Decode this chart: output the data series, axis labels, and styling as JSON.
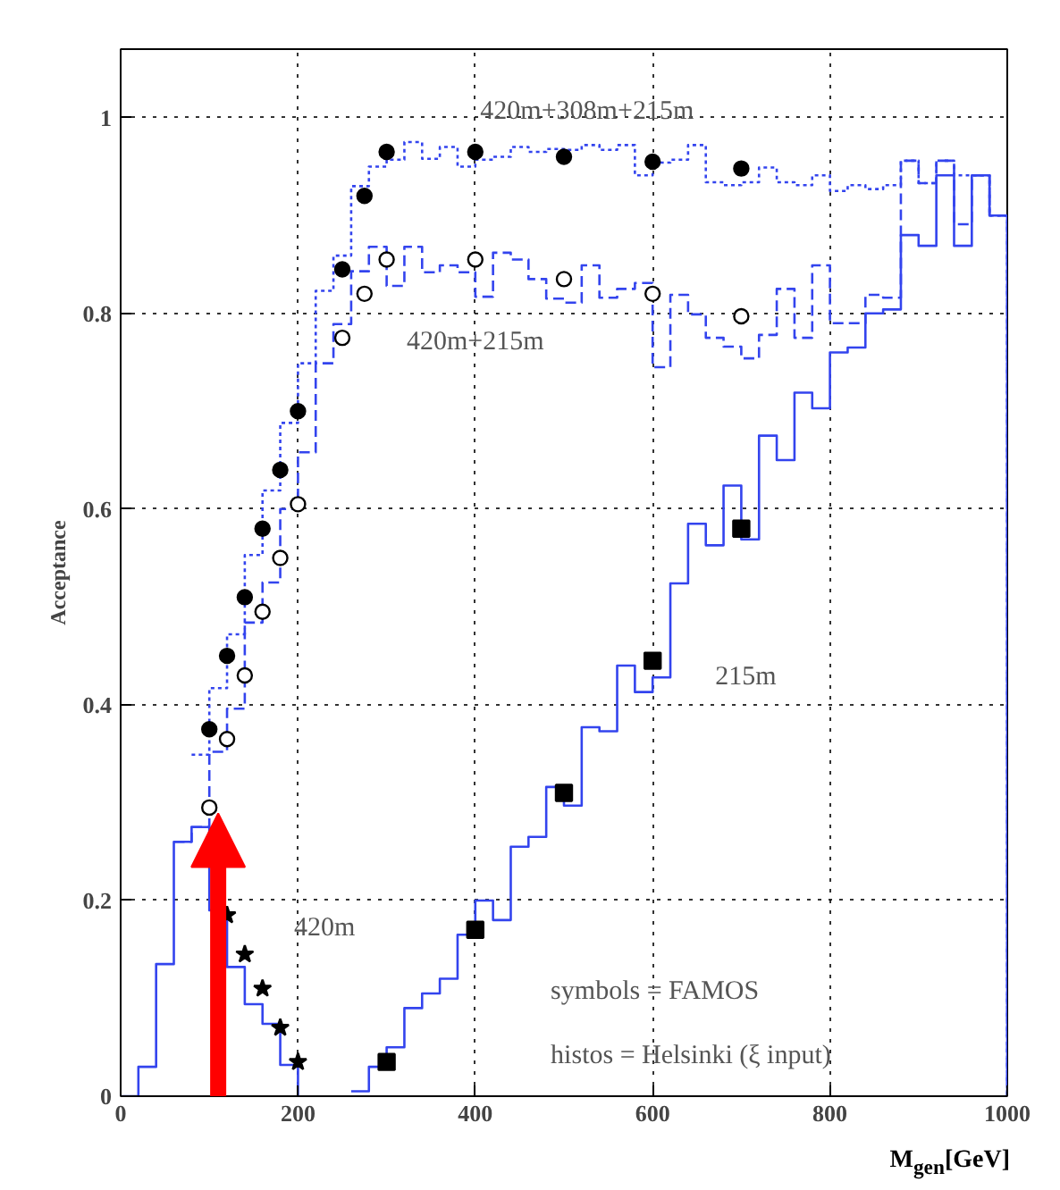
{
  "chart_data": {
    "type": "step",
    "xlabel": "M$_{gen}$[GeV]",
    "ylabel": "Acceptance",
    "xlim": [
      0,
      1000
    ],
    "ylim": [
      0,
      1.07
    ],
    "xticks": [
      0,
      200,
      400,
      600,
      800,
      1000
    ],
    "yticks": [
      0,
      0.2,
      0.4,
      0.6,
      0.8,
      1
    ],
    "grid": true,
    "series": [
      {
        "color": "#3344ee",
        "line_style": "dotted",
        "x": [
          80,
          100,
          120,
          140,
          160,
          180,
          200,
          220,
          240,
          260,
          280,
          300,
          320,
          340,
          360,
          380,
          400,
          420,
          440,
          460,
          480,
          500,
          520,
          540,
          560,
          580,
          600,
          620,
          640,
          660,
          680,
          700,
          720,
          740,
          760,
          780,
          800,
          820,
          840,
          860,
          880,
          900,
          920,
          940,
          960,
          980,
          1000
        ],
        "values": [
          0.349,
          0.417,
          0.472,
          0.553,
          0.619,
          0.688,
          0.749,
          0.823,
          0.859,
          0.93,
          0.95,
          0.957,
          0.975,
          0.958,
          0.97,
          0.95,
          0.957,
          0.96,
          0.97,
          0.965,
          0.968,
          0.967,
          0.972,
          0.967,
          0.972,
          0.941,
          0.954,
          0.957,
          0.972,
          0.934,
          0.931,
          0.934,
          0.949,
          0.934,
          0.931,
          0.941,
          0.925,
          0.931,
          0.927,
          0.931,
          0.956,
          0.933,
          0.956,
          0.941,
          0.941,
          0.9,
          0
        ]
      },
      {
        "color": "#3344ee",
        "line_style": "dashed",
        "x": [
          60,
          80,
          100,
          120,
          140,
          160,
          180,
          200,
          220,
          240,
          260,
          280,
          300,
          320,
          340,
          360,
          380,
          400,
          420,
          440,
          460,
          480,
          500,
          520,
          540,
          560,
          580,
          600,
          620,
          640,
          660,
          680,
          700,
          720,
          740,
          760,
          780,
          800,
          820,
          840,
          860,
          880,
          900,
          920,
          940,
          960,
          980,
          1000
        ],
        "values": [
          0.26,
          0.275,
          0.352,
          0.396,
          0.484,
          0.525,
          0.6,
          0.658,
          0.749,
          0.789,
          0.843,
          0.868,
          0.828,
          0.868,
          0.842,
          0.849,
          0.842,
          0.817,
          0.862,
          0.855,
          0.835,
          0.815,
          0.811,
          0.849,
          0.816,
          0.825,
          0.831,
          0.745,
          0.819,
          0.799,
          0.775,
          0.766,
          0.754,
          0.778,
          0.825,
          0.775,
          0.849,
          0.79,
          0.79,
          0.819,
          0.816,
          0.956,
          0.933,
          0.956,
          0.891,
          0.941,
          0.9,
          0
        ]
      },
      {
        "color": "#3344ee",
        "line_style": "solid",
        "x": [
          260,
          280,
          300,
          320,
          340,
          360,
          380,
          400,
          420,
          440,
          460,
          480,
          500,
          520,
          540,
          560,
          580,
          600,
          620,
          640,
          660,
          680,
          700,
          720,
          740,
          760,
          780,
          800,
          820,
          840,
          860,
          880,
          900,
          920,
          940,
          960,
          980,
          1000
        ],
        "values": [
          0.005,
          0.03,
          0.05,
          0.09,
          0.105,
          0.12,
          0.165,
          0.2,
          0.18,
          0.255,
          0.265,
          0.316,
          0.297,
          0.377,
          0.373,
          0.44,
          0.413,
          0.428,
          0.524,
          0.585,
          0.563,
          0.624,
          0.569,
          0.675,
          0.65,
          0.719,
          0.703,
          0.76,
          0.765,
          0.8,
          0.804,
          0.88,
          0.869,
          0.941,
          0.869,
          0.941,
          0.9,
          0
        ]
      },
      {
        "color": "#3344ee",
        "line_style": "solid",
        "x": [
          0,
          20,
          40,
          60,
          80,
          100,
          120,
          140,
          160,
          180,
          200
        ],
        "values": [
          0,
          0.03,
          0.135,
          0.26,
          0.275,
          0.19,
          0.132,
          0.094,
          0.074,
          0.032,
          0
        ]
      },
      {
        "type": "scatter",
        "color": "#000000",
        "marker": "circle",
        "x": [
          100,
          120,
          140,
          160,
          180,
          200,
          250,
          275,
          300,
          400,
          500,
          600,
          700
        ],
        "values": [
          0.375,
          0.45,
          0.51,
          0.58,
          0.64,
          0.7,
          0.845,
          0.92,
          0.965,
          0.965,
          0.96,
          0.955,
          0.948
        ]
      },
      {
        "type": "scatter",
        "color": "#ffffff",
        "marker": "circle",
        "x": [
          100,
          120,
          140,
          160,
          180,
          200,
          250,
          275,
          300,
          400,
          500,
          600,
          700
        ],
        "values": [
          0.295,
          0.365,
          0.43,
          0.495,
          0.55,
          0.605,
          0.775,
          0.82,
          0.855,
          0.855,
          0.835,
          0.82,
          0.797
        ]
      },
      {
        "type": "scatter",
        "color": "#000000",
        "marker": "star",
        "x": [
          120,
          140,
          160,
          180,
          200
        ],
        "values": [
          0.185,
          0.145,
          0.11,
          0.07,
          0.035
        ]
      },
      {
        "type": "scatter",
        "color": "#000000",
        "marker": "square",
        "x": [
          300,
          400,
          500,
          600,
          700
        ],
        "values": [
          0.035,
          0.17,
          0.31,
          0.445,
          0.58
        ]
      }
    ],
    "annotations": [
      "420m+308m+215m",
      "420m+215m",
      "215m",
      "420m",
      "symbols = FAMOS",
      "histos = Helsinki (ξ input)"
    ]
  }
}
